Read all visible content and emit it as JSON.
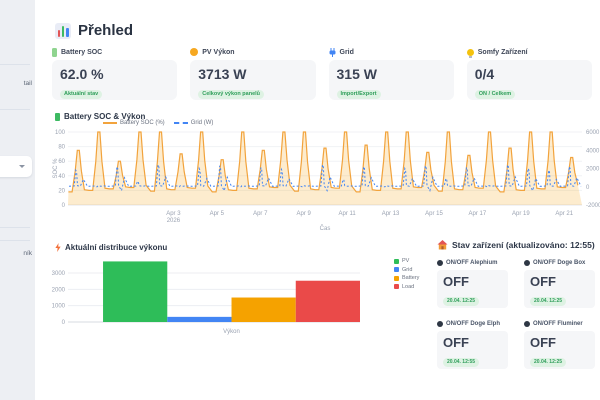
{
  "sidebar": {
    "fragment_top": "tail",
    "fragment_bottom": "ník"
  },
  "header": {
    "title": "Přehled"
  },
  "stat_cards": [
    {
      "label": "Battery SOC",
      "value": "62.0 %",
      "badge": "Aktuální stav",
      "icon": "battery-icon",
      "icon_color": "#8fd48f"
    },
    {
      "label": "PV Výkon",
      "value": "3713 W",
      "badge": "Celkový výkon panelů",
      "icon": "sun-icon",
      "icon_color": "#f6a821"
    },
    {
      "label": "Grid",
      "value": "315 W",
      "badge": "Import/Export",
      "icon": "plug-icon",
      "icon_color": "#4285f4"
    },
    {
      "label": "Somfy Zařízení",
      "value": "0/4",
      "badge": "ON / Celkem",
      "icon": "bulb-icon",
      "icon_color": "#f4c20d"
    }
  ],
  "devices_panel": {
    "title": "Stav zařízení (aktualizováno: 12:55)",
    "devices": [
      {
        "label": "ON/OFF Alephium",
        "state": "OFF",
        "timestamp": "20.04. 12:25"
      },
      {
        "label": "ON/OFF Doge Box",
        "state": "OFF",
        "timestamp": "20.04. 12:25"
      },
      {
        "label": "ON/OFF Doge Elph",
        "state": "OFF",
        "timestamp": "20.04. 12:55"
      },
      {
        "label": "ON/OFF Fluminer",
        "state": "OFF",
        "timestamp": "20.04. 12:25"
      }
    ]
  },
  "chart_data": [
    {
      "type": "line",
      "title": "Battery SOC & Výkon",
      "series": [
        {
          "name": "Battery SOC (%)",
          "color": "#f2a33c",
          "fill": "rgba(246,168,33,0.22)",
          "style": "solid-area",
          "axis": "left"
        },
        {
          "name": "Grid (W)",
          "color": "#4285f4",
          "style": "dashed",
          "axis": "right"
        }
      ],
      "left_axis": {
        "label": "SOC %",
        "ticks": [
          0,
          20,
          40,
          60,
          80,
          100
        ],
        "range": [
          0,
          100
        ]
      },
      "right_axis": {
        "ticks": [
          -2000,
          0,
          2000,
          4000,
          6000
        ],
        "range": [
          -2000,
          6000
        ]
      },
      "x_axis": {
        "label": "Čas",
        "ticks": [
          "Apr 3",
          "Apr 5",
          "Apr 7",
          "Apr 9",
          "Apr 11",
          "Apr 13",
          "Apr 15",
          "Apr 17",
          "Apr 19",
          "Apr 21"
        ],
        "year_label": "2026"
      },
      "soc_baseline": 20,
      "soc_daily_peaks": [
        75,
        100,
        60,
        100,
        100,
        70,
        100,
        62,
        100,
        75,
        100,
        100,
        78,
        100,
        82,
        100,
        100,
        72,
        100,
        68,
        100,
        78,
        100,
        100,
        65
      ],
      "grid_daily_spikes": [
        1800,
        0,
        2200,
        600,
        2400,
        0,
        2000,
        2300,
        0,
        2100,
        1900,
        0,
        2400,
        800,
        2200,
        0,
        2000,
        2300,
        900,
        2100,
        0,
        2400,
        2000,
        1800,
        2200
      ]
    },
    {
      "type": "bar",
      "title": "Aktuální distribuce výkonu",
      "category": "Výkon",
      "series": [
        {
          "name": "PV",
          "value": 3713,
          "color": "#2ebd59"
        },
        {
          "name": "Grid",
          "value": 315,
          "color": "#4285f4"
        },
        {
          "name": "Battery",
          "value": 1500,
          "color": "#f5a200"
        },
        {
          "name": "Load",
          "value": 2530,
          "color": "#ea4a49"
        }
      ],
      "yticks": [
        0,
        1000,
        2000,
        3000
      ],
      "ymax": 3800,
      "legend_position": "right"
    }
  ]
}
